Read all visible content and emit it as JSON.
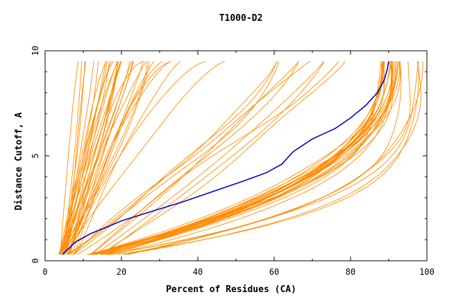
{
  "chart_data": {
    "type": "line",
    "title": "T1000-D2",
    "xlabel": "Percent of Residues (CA)",
    "ylabel": "Distance Cutoff, A",
    "xlim": [
      0,
      100
    ],
    "ylim": [
      0,
      10
    ],
    "x_ticks": [
      0,
      20,
      40,
      60,
      80,
      100
    ],
    "y_ticks": [
      0,
      5,
      10
    ],
    "x_tick_labels": [
      "0",
      "20",
      "40",
      "60",
      "80",
      "100"
    ],
    "y_tick_labels": [
      "0",
      "5",
      "10"
    ],
    "grid": false,
    "legend": "none",
    "colors": {
      "highlight": "#0000cc",
      "others": "#ff8c00"
    },
    "highlight_series": {
      "x": [
        4.5,
        8,
        12,
        16,
        20,
        27,
        36,
        44,
        52,
        58,
        62,
        65,
        70,
        76,
        80,
        84,
        87,
        88.8,
        89.6,
        90
      ],
      "y": [
        0.3,
        0.9,
        1.3,
        1.6,
        1.9,
        2.3,
        2.8,
        3.3,
        3.8,
        4.2,
        4.6,
        5.2,
        5.8,
        6.3,
        6.8,
        7.4,
        8.0,
        8.6,
        9.1,
        9.5
      ]
    },
    "curve_groups": [
      {
        "name": "",
        "count": 28,
        "x0": [
          3.5,
          6.5
        ],
        "x_end": [
          8,
          28
        ],
        "power": [
          0.75,
          1.35
        ]
      },
      {
        "name": "",
        "count": 8,
        "x0": [
          5,
          9
        ],
        "x_end": [
          25,
          48
        ],
        "power": [
          0.55,
          1.0
        ]
      },
      {
        "name": "",
        "count": 5,
        "x0": [
          5,
          9
        ],
        "x_end": [
          58,
          78
        ],
        "power": [
          0.9,
          1.4
        ]
      },
      {
        "name": "",
        "count": 5,
        "x0": [
          10,
          16
        ],
        "x_end": [
          62,
          80
        ],
        "power": [
          1.0,
          1.35
        ]
      },
      {
        "name": "",
        "count": 24,
        "x0": [
          11,
          18
        ],
        "x_end": [
          88,
          93
        ],
        "power": [
          2.3,
          2.9
        ]
      },
      {
        "name": "",
        "count": 6,
        "x0": [
          15,
          22
        ],
        "x_end": [
          93,
          99
        ],
        "power": [
          3.0,
          4.2
        ]
      }
    ]
  }
}
